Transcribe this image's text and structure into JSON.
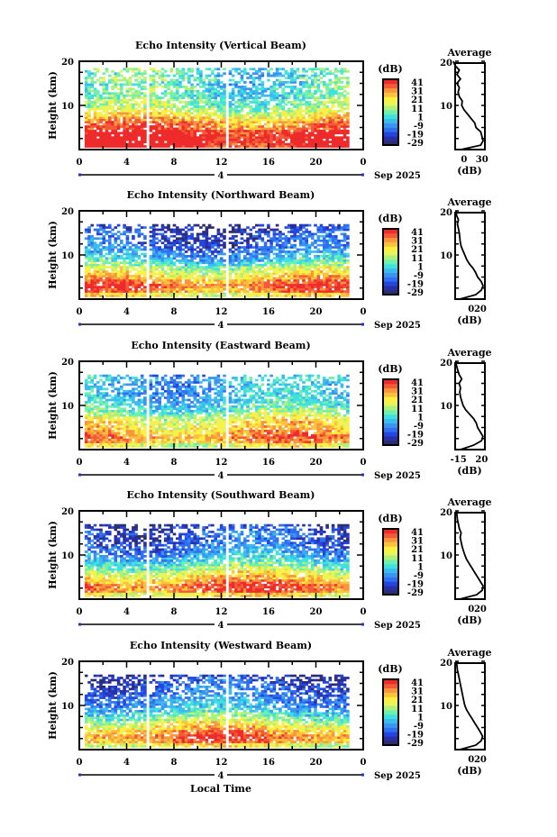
{
  "figure": {
    "xlabel": "Local Time"
  },
  "chart_data": [
    {
      "type": "heatmap",
      "title": "Echo Intensity (Vertical Beam)",
      "ylabel": "Height (km)",
      "ylim": [
        0,
        20
      ],
      "y_ticks": [
        "20",
        "10"
      ],
      "xlim": [
        0,
        24
      ],
      "x_ticks": [
        "0",
        "4",
        "8",
        "12",
        "16",
        "20",
        "0"
      ],
      "day": "4",
      "month_label": "Sep 2025",
      "colorbar": {
        "label": "(dB)",
        "ticks": [
          "41",
          "31",
          "21",
          "11",
          "1",
          "-9",
          "-19",
          "-29"
        ],
        "range": [
          -29,
          41
        ]
      },
      "data_gaps_hours": [
        5.5,
        12.3
      ],
      "data_end_hour": 22.8,
      "top_km": 18.5,
      "average": {
        "title": "Average",
        "xlabel": "(dB)",
        "x_ticks": [
          "0",
          "30"
        ],
        "xlim": [
          -15,
          35
        ],
        "heights_km": [
          0,
          1,
          2,
          3,
          4,
          5,
          6,
          7,
          8,
          9,
          10,
          11,
          12,
          13,
          14,
          15,
          16,
          17,
          18,
          19,
          20
        ],
        "values_db": [
          -5,
          28,
          32,
          30,
          28,
          20,
          18,
          12,
          6,
          0,
          -4,
          -3,
          -8,
          -10,
          -8,
          -12,
          -6,
          -12,
          -8,
          -15,
          -18
        ]
      }
    },
    {
      "type": "heatmap",
      "title": "Echo Intensity (Northward Beam)",
      "ylabel": "Height (km)",
      "ylim": [
        0,
        20
      ],
      "y_ticks": [
        "20",
        "10"
      ],
      "xlim": [
        0,
        24
      ],
      "x_ticks": [
        "0",
        "4",
        "8",
        "12",
        "16",
        "20",
        "0"
      ],
      "day": "4",
      "month_label": "Sep 2025",
      "colorbar": {
        "label": "(dB)",
        "ticks": [
          "41",
          "31",
          "21",
          "11",
          "1",
          "-9",
          "-19",
          "-29"
        ],
        "range": [
          -29,
          41
        ]
      },
      "data_gaps_hours": [
        5.5,
        12.3
      ],
      "data_end_hour": 22.8,
      "top_km": 17,
      "average": {
        "title": "Average",
        "xlabel": "(dB)",
        "x_ticks": [
          "0",
          "20"
        ],
        "xlim": [
          -35,
          30
        ],
        "heights_km": [
          0,
          1,
          2,
          3,
          4,
          5,
          6,
          7,
          8,
          9,
          10,
          11,
          12,
          13,
          14,
          15,
          16,
          17,
          18,
          19,
          20
        ],
        "values_db": [
          -25,
          10,
          22,
          26,
          22,
          14,
          10,
          4,
          -4,
          -10,
          -14,
          -18,
          -22,
          -24,
          -25,
          -26,
          -28,
          -30,
          -28,
          -32,
          -33
        ]
      }
    },
    {
      "type": "heatmap",
      "title": "Echo Intensity (Eastward Beam)",
      "ylabel": "Height (km)",
      "ylim": [
        0,
        20
      ],
      "y_ticks": [
        "20",
        "10"
      ],
      "xlim": [
        0,
        24
      ],
      "x_ticks": [
        "0",
        "4",
        "8",
        "12",
        "16",
        "20",
        "0"
      ],
      "day": "4",
      "month_label": "Sep 2025",
      "colorbar": {
        "label": "(dB)",
        "ticks": [
          "41",
          "31",
          "21",
          "11",
          "1",
          "-9",
          "-19",
          "-29"
        ],
        "range": [
          -29,
          41
        ]
      },
      "data_gaps_hours": [
        5.5,
        12.3
      ],
      "data_end_hour": 22.8,
      "top_km": 17,
      "average": {
        "title": "Average",
        "xlabel": "(dB)",
        "x_ticks": [
          "-15",
          "20"
        ],
        "xlim": [
          -20,
          25
        ],
        "heights_km": [
          0,
          1,
          2,
          3,
          4,
          5,
          6,
          7,
          8,
          9,
          10,
          11,
          12,
          13,
          14,
          15,
          16,
          17,
          18,
          19,
          20
        ],
        "values_db": [
          -12,
          8,
          20,
          22,
          18,
          14,
          12,
          8,
          2,
          -4,
          -8,
          -10,
          -12,
          -13,
          -12,
          -14,
          -10,
          -14,
          -16,
          -18,
          -19
        ]
      }
    },
    {
      "type": "heatmap",
      "title": "Echo Intensity (Southward Beam)",
      "ylabel": "Height (km)",
      "ylim": [
        0,
        20
      ],
      "y_ticks": [
        "20",
        "10"
      ],
      "xlim": [
        0,
        24
      ],
      "x_ticks": [
        "0",
        "4",
        "8",
        "12",
        "16",
        "20",
        "0"
      ],
      "day": "4",
      "month_label": "Sep 2025",
      "colorbar": {
        "label": "(dB)",
        "ticks": [
          "41",
          "31",
          "21",
          "11",
          "1",
          "-9",
          "-19",
          "-29"
        ],
        "range": [
          -29,
          41
        ]
      },
      "data_gaps_hours": [
        5.5,
        12.3
      ],
      "data_end_hour": 22.8,
      "top_km": 17,
      "average": {
        "title": "Average",
        "xlabel": "(dB)",
        "x_ticks": [
          "0",
          "20"
        ],
        "xlim": [
          -35,
          30
        ],
        "heights_km": [
          0,
          1,
          2,
          3,
          4,
          5,
          6,
          7,
          8,
          9,
          10,
          11,
          12,
          13,
          14,
          15,
          16,
          17,
          18,
          19,
          20
        ],
        "values_db": [
          -25,
          12,
          24,
          26,
          20,
          14,
          8,
          2,
          -4,
          -10,
          -14,
          -17,
          -20,
          -22,
          -24,
          -22,
          -26,
          -28,
          -30,
          -31,
          -32
        ]
      }
    },
    {
      "type": "heatmap",
      "title": "Echo Intensity (Westward Beam)",
      "ylabel": "Height (km)",
      "ylim": [
        0,
        20
      ],
      "y_ticks": [
        "20",
        "10"
      ],
      "xlim": [
        0,
        24
      ],
      "x_ticks": [
        "0",
        "4",
        "8",
        "12",
        "16",
        "20",
        "0"
      ],
      "day": "4",
      "month_label": "Sep 2025",
      "colorbar": {
        "label": "(dB)",
        "ticks": [
          "41",
          "31",
          "21",
          "11",
          "1",
          "-9",
          "-19",
          "-29"
        ],
        "range": [
          -29,
          41
        ]
      },
      "data_gaps_hours": [
        5.5,
        12.3
      ],
      "data_end_hour": 22.8,
      "top_km": 17,
      "average": {
        "title": "Average",
        "xlabel": "(dB)",
        "x_ticks": [
          "0",
          "20"
        ],
        "xlim": [
          -35,
          30
        ],
        "heights_km": [
          0,
          1,
          2,
          3,
          4,
          5,
          6,
          7,
          8,
          9,
          10,
          11,
          12,
          13,
          14,
          15,
          16,
          17,
          18,
          19,
          20
        ],
        "values_db": [
          -25,
          10,
          22,
          25,
          20,
          14,
          8,
          2,
          -4,
          -10,
          -14,
          -16,
          -18,
          -20,
          -22,
          -24,
          -26,
          -28,
          -30,
          -31,
          -32
        ]
      }
    }
  ],
  "colormap": [
    "#2b2d6e",
    "#2a2fa5",
    "#2346e0",
    "#2f6ff0",
    "#3a95f0",
    "#3cbbee",
    "#3fe0e0",
    "#6ef0b0",
    "#b0f078",
    "#e8f55a",
    "#fff040",
    "#fcc23e",
    "#f9963c",
    "#f45a38",
    "#ee2a2a"
  ]
}
